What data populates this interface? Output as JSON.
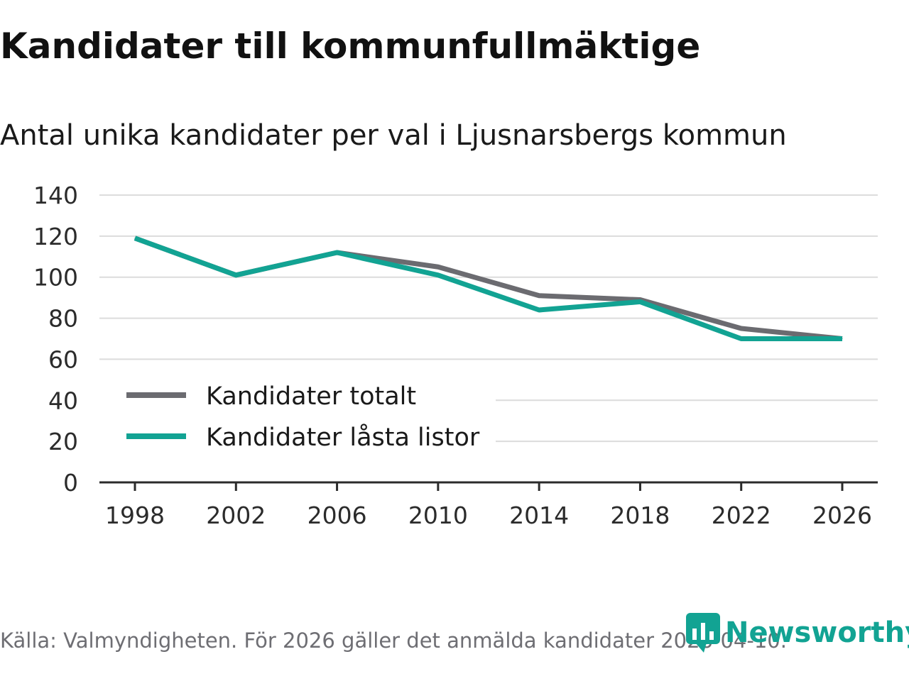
{
  "header": {
    "title": "Kandidater till kommunfullmäktige",
    "subtitle": "Antal unika kandidater per val i Ljusnarsbergs kommun"
  },
  "chart_data": {
    "type": "line",
    "title": "Kandidater till kommunfullmäktige",
    "subtitle": "Antal unika kandidater per val i Ljusnarsbergs kommun",
    "xlabel": "",
    "ylabel": "",
    "categories": [
      "1998",
      "2002",
      "2006",
      "2010",
      "2014",
      "2018",
      "2022",
      "2026"
    ],
    "yticks": [
      "0",
      "20",
      "40",
      "60",
      "80",
      "100",
      "120",
      "140"
    ],
    "ylim": [
      0,
      140
    ],
    "grid": true,
    "legend_position": "bottom-left",
    "series": [
      {
        "name": "Kandidater totalt",
        "color": "#6b6b70",
        "values": [
          119,
          101,
          112,
          105,
          91,
          89,
          75,
          70
        ]
      },
      {
        "name": "Kandidater låsta listor",
        "color": "#12a393",
        "values": [
          119,
          101,
          112,
          101,
          84,
          88,
          70,
          70
        ]
      }
    ]
  },
  "footer": {
    "source": "Källa: Valmyndigheten. För 2026 gäller det anmälda kandidater 2026-04-10.",
    "brand": "Newsworthy",
    "brand_color": "#12a393"
  }
}
